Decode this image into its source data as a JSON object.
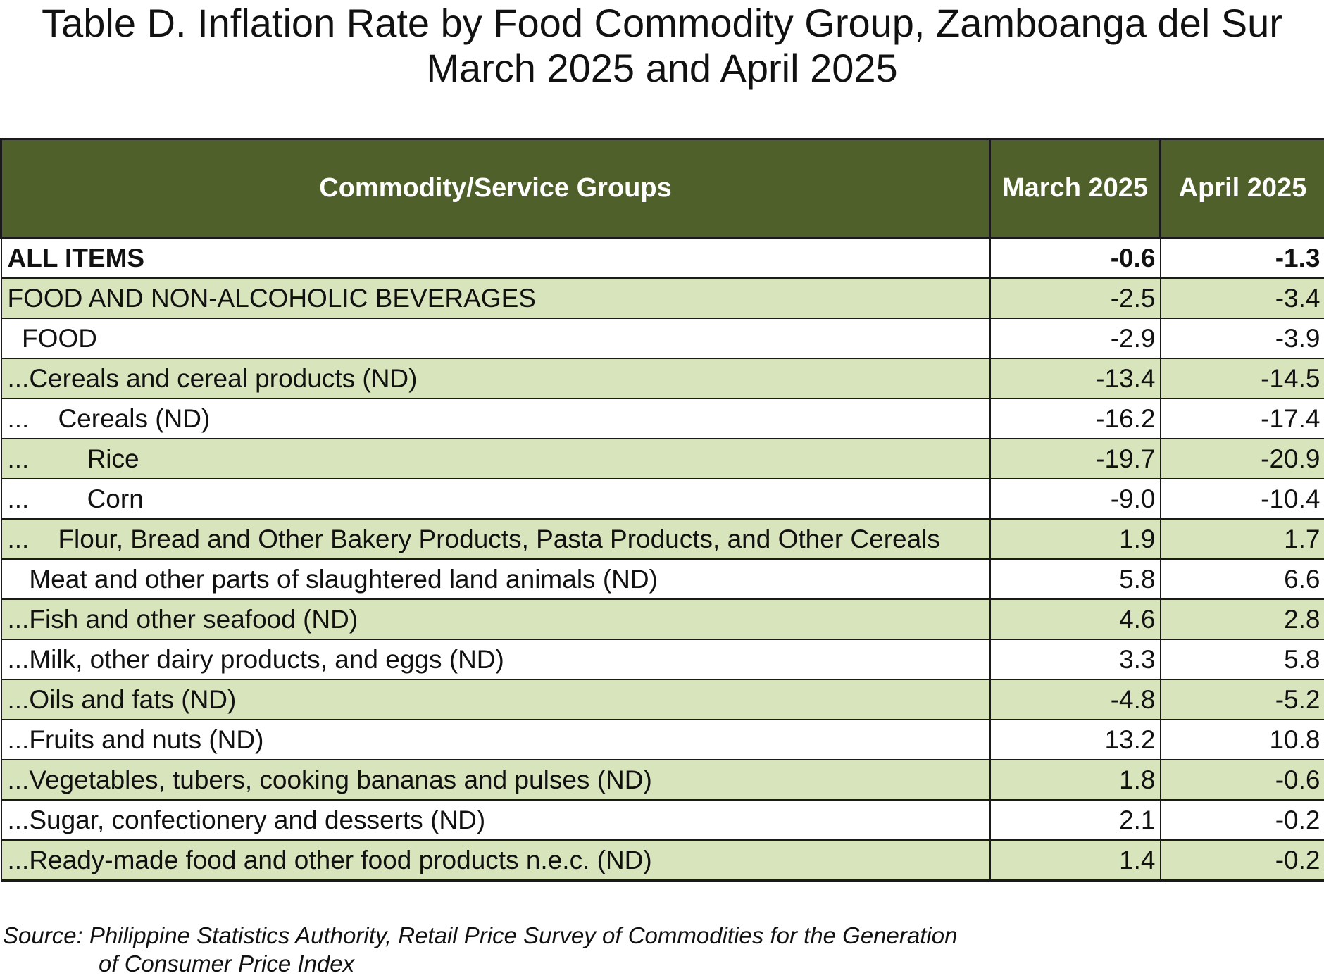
{
  "title": {
    "line1": "Table D. Inflation Rate by Food Commodity Group, Zamboanga del Sur",
    "line2": "March 2025 and April 2025"
  },
  "table": {
    "headers": [
      "Commodity/Service Groups",
      "March 2025",
      "April 2025"
    ],
    "rows": [
      {
        "label": "ALL ITEMS",
        "march": "-0.6",
        "april": "-1.3"
      },
      {
        "label": "FOOD AND NON-ALCOHOLIC BEVERAGES",
        "march": "-2.5",
        "april": "-3.4"
      },
      {
        "label": "  FOOD",
        "march": "-2.9",
        "april": "-3.9"
      },
      {
        "label": "...Cereals and cereal products (ND)",
        "march": "-13.4",
        "april": "-14.5"
      },
      {
        "label": "...    Cereals (ND)",
        "march": "-16.2",
        "april": "-17.4"
      },
      {
        "label": "...        Rice",
        "march": "-19.7",
        "april": "-20.9"
      },
      {
        "label": "...        Corn",
        "march": "-9.0",
        "april": "-10.4"
      },
      {
        "label": "...    Flour, Bread and Other Bakery Products, Pasta Products, and Other Cereals",
        "march": "1.9",
        "april": "1.7"
      },
      {
        "label": "   Meat and other parts of slaughtered land animals (ND)",
        "march": "5.8",
        "april": "6.6"
      },
      {
        "label": "...Fish and other seafood (ND)",
        "march": "4.6",
        "april": "2.8"
      },
      {
        "label": "...Milk, other dairy products, and eggs (ND)",
        "march": "3.3",
        "april": "5.8"
      },
      {
        "label": "...Oils and fats (ND)",
        "march": "-4.8",
        "april": "-5.2"
      },
      {
        "label": "...Fruits and nuts (ND)",
        "march": "13.2",
        "april": "10.8"
      },
      {
        "label": "...Vegetables, tubers, cooking bananas and pulses (ND)",
        "march": "1.8",
        "april": "-0.6"
      },
      {
        "label": "...Sugar, confectionery and desserts (ND)",
        "march": "2.1",
        "april": "-0.2"
      },
      {
        "label": "...Ready-made food and other food products n.e.c. (ND)",
        "march": "1.4",
        "april": "-0.2"
      }
    ]
  },
  "source": {
    "line1": "Source: Philippine Statistics Authority, Retail Price Survey of Commodities for the Generation",
    "line2": "of Consumer Price Index"
  },
  "colors": {
    "header_bg": "#4f602b",
    "alt_row_bg": "#d8e4bc",
    "border": "#1a1a1a"
  }
}
